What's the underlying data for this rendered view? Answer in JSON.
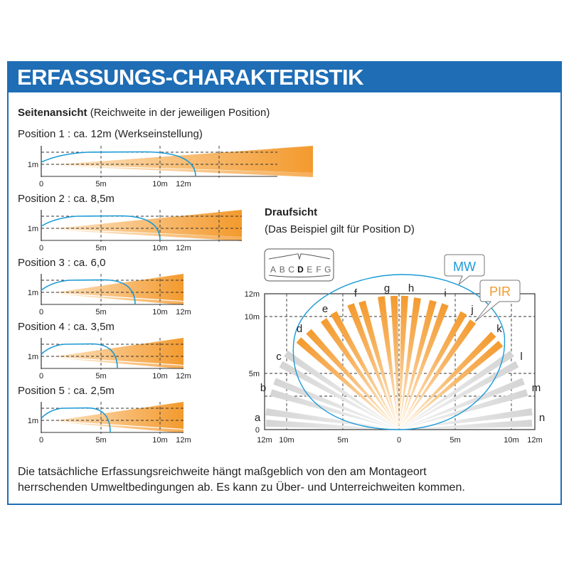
{
  "header": {
    "title": "ERFASSUNGS-CHARAKTERISTIK"
  },
  "side_view": {
    "heading": "Seitenansicht",
    "heading_note": "(Reichweite in der jeweiligen Position)",
    "y_label": "1m",
    "x_ticks": [
      "0",
      "5m",
      "10m",
      "12m"
    ],
    "positions": [
      {
        "label": "Position 1 : ca. 12m (Werkseinstellung)",
        "range_m": 12
      },
      {
        "label": "Position 2 : ca. 8,5m",
        "range_m": 8.5
      },
      {
        "label": "Position 3 : ca. 6,0",
        "range_m": 6.0
      },
      {
        "label": "Position 4 : ca. 3,5m",
        "range_m": 3.5
      },
      {
        "label": "Position 5 : ca. 2,5m",
        "range_m": 2.5
      }
    ]
  },
  "top_view": {
    "heading": "Draufsicht",
    "subheading": "(Das Beispiel gilt für Position D)",
    "position_selector": {
      "letters": [
        "A",
        "B",
        "C",
        "D",
        "E",
        "F",
        "G"
      ],
      "selected": "D"
    },
    "callouts": {
      "mw": "MW",
      "pir": "PIR"
    },
    "y_ticks": [
      "12m",
      "10m",
      "5m",
      "0"
    ],
    "x_ticks": [
      "12m",
      "10m",
      "5m",
      "0",
      "5m",
      "10m",
      "12m"
    ],
    "zones": [
      "a",
      "b",
      "c",
      "d",
      "e",
      "f",
      "g",
      "h",
      "i",
      "j",
      "k",
      "l",
      "m",
      "n"
    ],
    "active_zones": [
      "d",
      "e",
      "f",
      "g",
      "h",
      "i",
      "j",
      "k"
    ]
  },
  "footer": {
    "line1": "Die tatsächliche Erfassungsreichweite hängt maßgeblich von den am Montageort",
    "line2": "herrschenden Umweltbedingungen ab. Es kann zu Über- und Unterreichweiten kommen."
  },
  "colors": {
    "brand_blue": "#1e6db5",
    "pir_orange": "#f39a2e",
    "mw_blue": "#1a9ad6",
    "inactive_gray": "#d6d6d6"
  }
}
